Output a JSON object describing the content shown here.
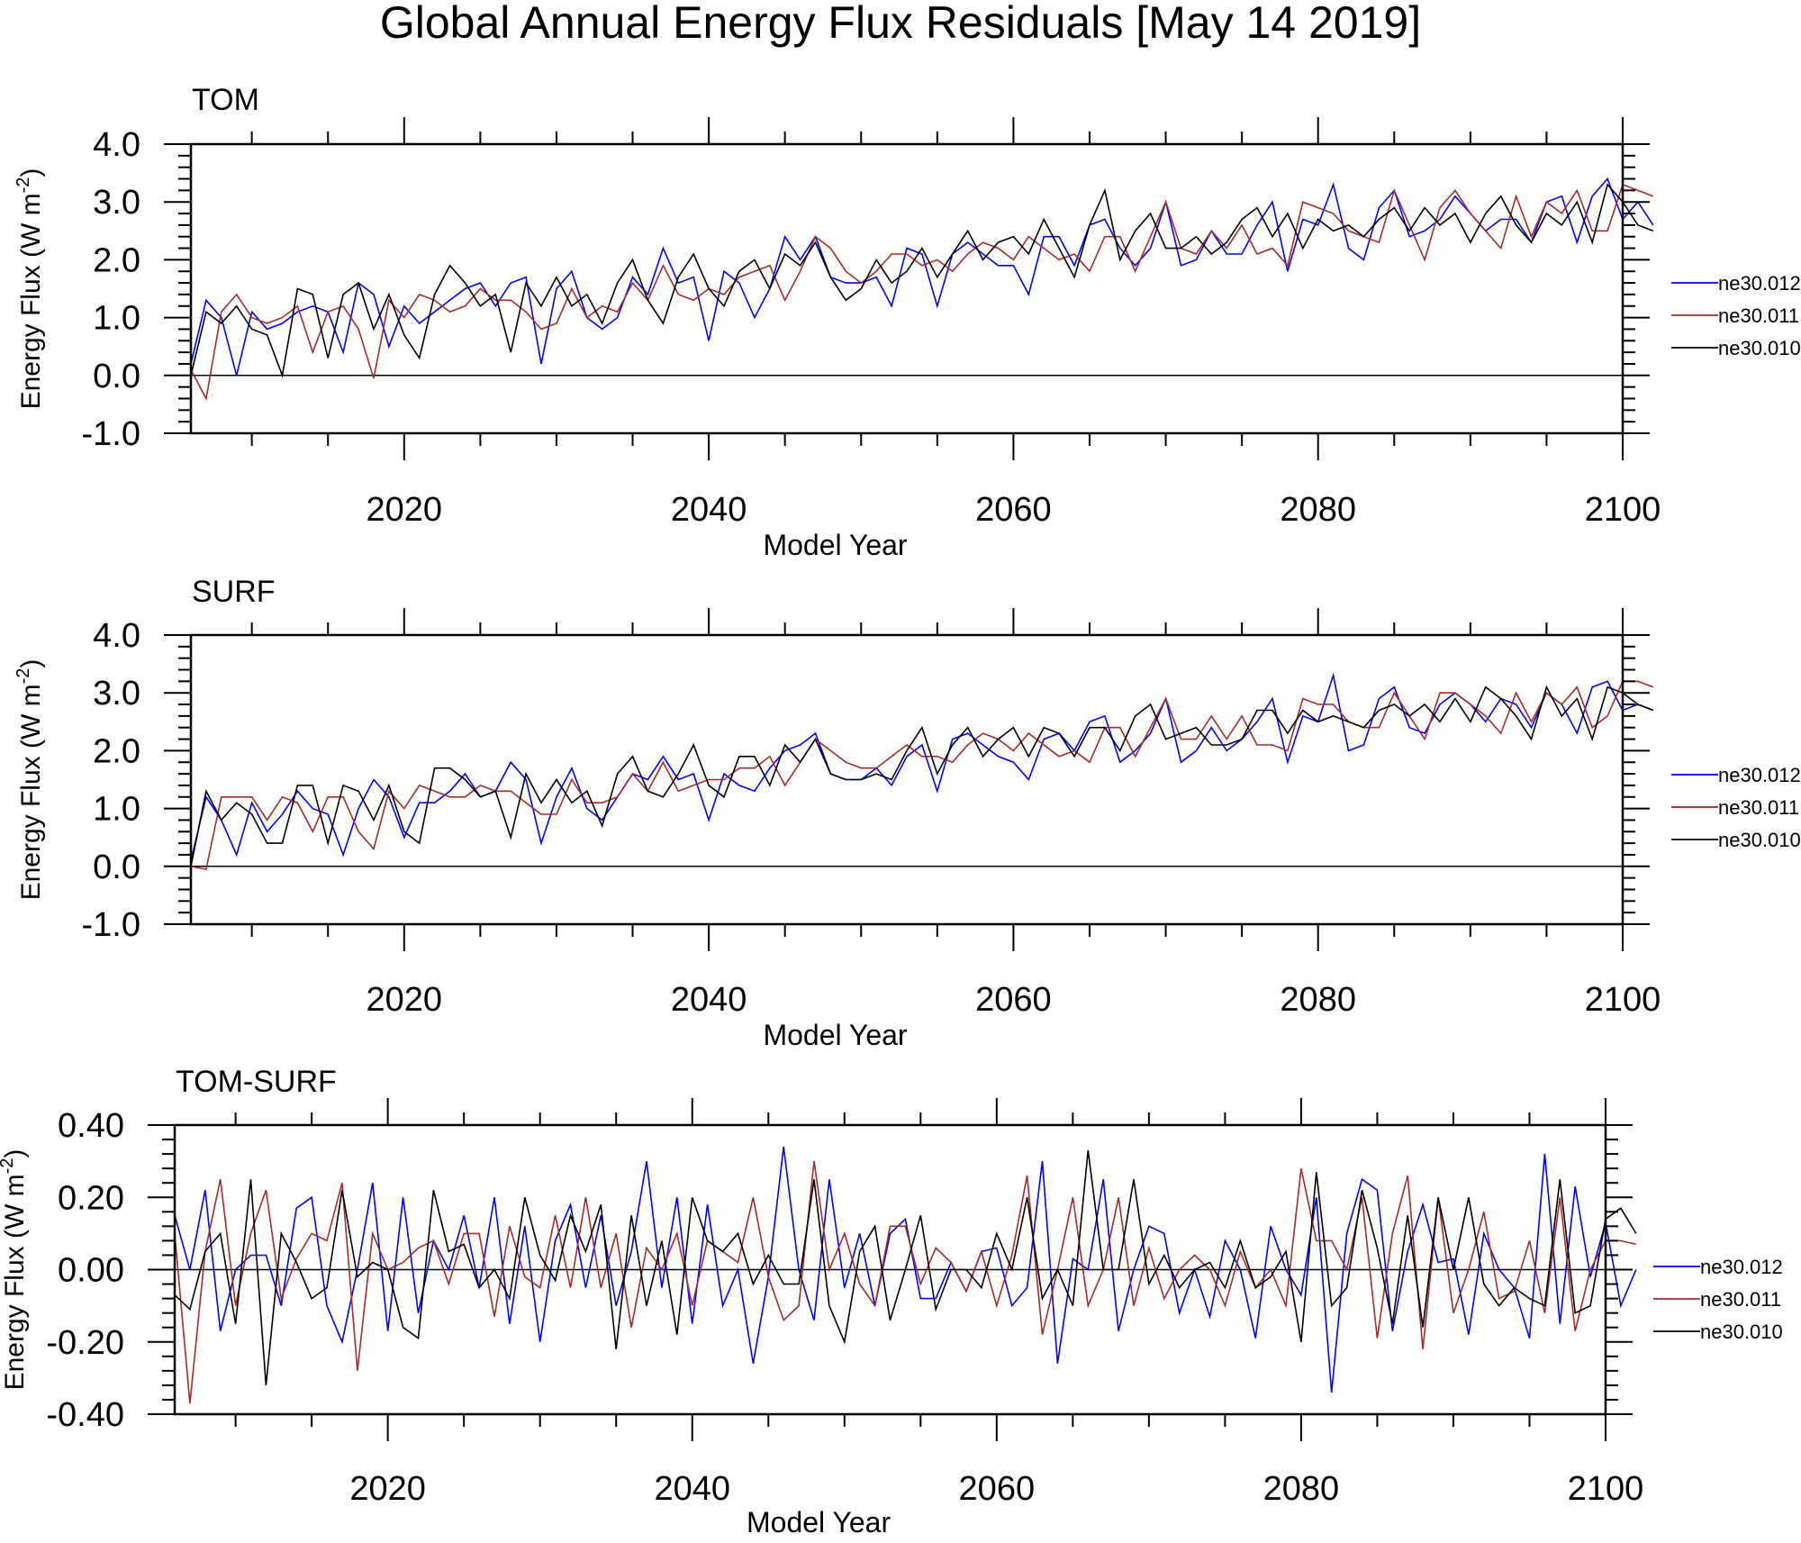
{
  "title": "Global Annual Energy Flux Residuals [May 14 2019]",
  "colors": {
    "ne30.012": "#0000ff",
    "ne30.011": "#a52a2a",
    "ne30.010": "#000000"
  },
  "chart_data": [
    {
      "panel": "TOM",
      "type": "line",
      "xlabel": "Model Year",
      "ylabel": "Energy Flux (W m",
      "ylabel_sup": "-2",
      "ylabel_close": ")",
      "xlim": [
        2006,
        2100
      ],
      "ylim": [
        -1.0,
        4.0
      ],
      "x_ticks": [
        2020,
        2040,
        2060,
        2080,
        2100
      ],
      "x_tick_labels": [
        "2020",
        "2040",
        "2060",
        "2080",
        "2100"
      ],
      "y_ticks": [
        -1.0,
        0.0,
        1.0,
        2.0,
        3.0,
        4.0
      ],
      "y_tick_labels": [
        "-1.0",
        "0.0",
        "1.0",
        "2.0",
        "3.0",
        "4.0"
      ],
      "legend": [
        "ne30.012",
        "ne30.011",
        "ne30.010"
      ],
      "legend_position": "right",
      "zero_line": true,
      "x_start": 2006,
      "series": [
        {
          "name": "ne30.012",
          "values": [
            0.2,
            1.3,
            1.0,
            0.0,
            1.1,
            0.8,
            0.9,
            1.1,
            1.2,
            1.1,
            0.4,
            1.6,
            1.4,
            0.5,
            1.2,
            0.9,
            1.1,
            1.3,
            1.5,
            1.6,
            1.2,
            1.6,
            1.7,
            0.2,
            1.5,
            1.8,
            1.0,
            0.8,
            1.0,
            1.7,
            1.4,
            2.2,
            1.6,
            1.7,
            0.6,
            1.8,
            1.6,
            1.0,
            1.5,
            2.4,
            2.0,
            2.4,
            1.7,
            1.6,
            1.6,
            1.7,
            1.2,
            2.2,
            2.1,
            1.2,
            2.1,
            2.3,
            2.1,
            1.9,
            1.9,
            1.4,
            2.4,
            2.4,
            1.9,
            2.6,
            2.7,
            2.2,
            1.9,
            2.2,
            3.0,
            1.9,
            2.0,
            2.5,
            2.1,
            2.1,
            2.6,
            3.0,
            1.8,
            2.7,
            2.6,
            3.3,
            2.2,
            2.0,
            2.9,
            3.2,
            2.4,
            2.5,
            2.7,
            3.1,
            2.8,
            2.5,
            2.7,
            2.7,
            2.3,
            3.0,
            3.1,
            2.3,
            3.1,
            3.4,
            2.7,
            3.0,
            2.6
          ]
        },
        {
          "name": "ne30.011",
          "values": [
            0.1,
            -0.4,
            1.1,
            1.4,
            1.0,
            0.9,
            1.0,
            1.2,
            0.4,
            1.1,
            1.2,
            0.8,
            -0.05,
            1.3,
            1.0,
            1.4,
            1.3,
            1.1,
            1.2,
            1.5,
            1.3,
            1.3,
            1.1,
            0.8,
            0.9,
            1.5,
            1.0,
            1.2,
            1.1,
            1.6,
            1.3,
            1.9,
            1.4,
            1.3,
            1.5,
            1.4,
            1.7,
            1.8,
            1.9,
            1.3,
            1.8,
            2.4,
            2.2,
            1.8,
            1.6,
            1.8,
            2.1,
            2.1,
            1.9,
            2.0,
            1.8,
            2.1,
            2.3,
            2.2,
            2.0,
            2.4,
            2.2,
            2.0,
            2.1,
            1.8,
            2.4,
            2.4,
            1.8,
            2.4,
            3.0,
            2.2,
            2.1,
            2.5,
            2.2,
            2.6,
            2.1,
            2.2,
            1.9,
            3.0,
            2.9,
            2.8,
            2.5,
            2.4,
            2.3,
            3.2,
            2.6,
            2.0,
            2.9,
            3.2,
            2.8,
            2.5,
            2.2,
            3.1,
            2.4,
            3.0,
            2.8,
            3.2,
            2.5,
            2.5,
            3.3,
            3.2,
            3.1
          ]
        },
        {
          "name": "ne30.010",
          "values": [
            0.0,
            1.1,
            0.9,
            1.2,
            0.8,
            0.7,
            0.0,
            1.5,
            1.4,
            0.3,
            1.4,
            1.6,
            0.8,
            1.4,
            0.7,
            0.3,
            1.4,
            1.9,
            1.6,
            1.2,
            1.4,
            0.4,
            1.6,
            1.2,
            1.7,
            1.2,
            1.4,
            0.9,
            1.6,
            2.0,
            1.3,
            0.9,
            1.7,
            2.1,
            1.5,
            1.2,
            1.8,
            2.0,
            1.5,
            2.1,
            1.9,
            2.3,
            1.7,
            1.3,
            1.5,
            2.0,
            1.6,
            1.8,
            2.2,
            1.7,
            2.1,
            2.5,
            2.0,
            2.3,
            2.4,
            2.1,
            2.7,
            2.2,
            1.7,
            2.6,
            3.2,
            2.0,
            2.5,
            2.8,
            2.2,
            2.2,
            2.4,
            2.1,
            2.3,
            2.7,
            2.9,
            2.4,
            2.8,
            2.2,
            2.7,
            2.5,
            2.6,
            2.4,
            2.7,
            2.9,
            2.5,
            2.9,
            2.6,
            2.8,
            2.3,
            2.8,
            3.1,
            2.6,
            2.3,
            2.8,
            2.6,
            3.0,
            2.3,
            3.3,
            3.0,
            2.6,
            2.5
          ]
        }
      ]
    },
    {
      "panel": "SURF",
      "type": "line",
      "xlabel": "Model Year",
      "ylabel": "Energy Flux (W m",
      "ylabel_sup": "-2",
      "ylabel_close": ")",
      "xlim": [
        2006,
        2100
      ],
      "ylim": [
        -1.0,
        4.0
      ],
      "x_ticks": [
        2020,
        2040,
        2060,
        2080,
        2100
      ],
      "x_tick_labels": [
        "2020",
        "2040",
        "2060",
        "2080",
        "2100"
      ],
      "y_ticks": [
        -1.0,
        0.0,
        1.0,
        2.0,
        3.0,
        4.0
      ],
      "y_tick_labels": [
        "-1.0",
        "0.0",
        "1.0",
        "2.0",
        "3.0",
        "4.0"
      ],
      "legend": [
        "ne30.012",
        "ne30.011",
        "ne30.010"
      ],
      "legend_position": "right",
      "zero_line": true,
      "x_start": 2006,
      "series": [
        {
          "name": "ne30.012",
          "values": [
            0.1,
            1.2,
            0.8,
            0.2,
            1.1,
            0.6,
            0.9,
            1.3,
            1.0,
            0.9,
            0.2,
            1.0,
            1.5,
            1.2,
            0.5,
            1.1,
            1.1,
            1.3,
            1.6,
            1.2,
            1.3,
            1.8,
            1.5,
            0.4,
            1.2,
            1.7,
            1.0,
            0.8,
            1.2,
            1.6,
            1.5,
            1.9,
            1.5,
            1.6,
            0.8,
            1.6,
            1.4,
            1.3,
            1.7,
            2.0,
            2.1,
            2.3,
            1.6,
            1.5,
            1.5,
            1.7,
            1.4,
            1.9,
            2.1,
            1.3,
            2.2,
            2.3,
            2.1,
            1.9,
            1.8,
            1.5,
            2.2,
            2.3,
            2.0,
            2.5,
            2.6,
            1.8,
            2.0,
            2.3,
            2.9,
            1.8,
            2.0,
            2.4,
            2.0,
            2.2,
            2.5,
            2.9,
            1.8,
            2.6,
            2.5,
            3.3,
            2.0,
            2.1,
            2.9,
            3.1,
            2.4,
            2.3,
            2.8,
            3.0,
            2.8,
            2.5,
            2.9,
            2.8,
            2.4,
            3.0,
            2.8,
            2.3,
            3.1,
            3.2,
            2.7,
            2.8,
            2.7
          ]
        },
        {
          "name": "ne30.011",
          "values": [
            0.0,
            -0.05,
            1.2,
            1.2,
            1.2,
            0.8,
            1.2,
            1.1,
            0.6,
            1.2,
            1.2,
            0.6,
            0.3,
            1.3,
            1.0,
            1.4,
            1.3,
            1.2,
            1.2,
            1.4,
            1.3,
            1.3,
            1.1,
            0.9,
            0.9,
            1.5,
            1.1,
            1.1,
            1.2,
            1.6,
            1.3,
            1.8,
            1.3,
            1.4,
            1.5,
            1.5,
            1.7,
            1.7,
            1.9,
            1.4,
            1.8,
            2.2,
            2.0,
            1.8,
            1.7,
            1.7,
            1.9,
            2.1,
            1.9,
            1.9,
            1.8,
            2.1,
            2.3,
            2.2,
            2.0,
            2.3,
            2.1,
            1.9,
            2.0,
            1.8,
            2.4,
            2.4,
            1.9,
            2.4,
            2.9,
            2.2,
            2.2,
            2.6,
            2.2,
            2.6,
            2.1,
            2.1,
            2.0,
            2.9,
            2.8,
            2.8,
            2.5,
            2.4,
            2.4,
            3.0,
            2.6,
            2.2,
            3.0,
            3.0,
            2.8,
            2.6,
            2.3,
            3.0,
            2.5,
            3.0,
            2.8,
            3.1,
            2.4,
            2.6,
            3.2,
            3.2,
            3.1
          ]
        },
        {
          "name": "ne30.010",
          "values": [
            0.0,
            1.3,
            0.8,
            1.1,
            0.9,
            0.4,
            0.4,
            1.4,
            1.4,
            0.4,
            1.4,
            1.3,
            0.8,
            1.4,
            0.6,
            0.4,
            1.7,
            1.7,
            1.5,
            1.2,
            1.3,
            0.5,
            1.6,
            1.1,
            1.5,
            1.1,
            1.3,
            0.7,
            1.6,
            1.9,
            1.3,
            1.2,
            1.6,
            2.1,
            1.4,
            1.2,
            1.9,
            1.9,
            1.4,
            2.1,
            1.8,
            2.2,
            1.6,
            1.5,
            1.5,
            1.6,
            1.5,
            2.0,
            2.4,
            1.6,
            2.1,
            2.4,
            1.9,
            2.2,
            2.4,
            1.9,
            2.4,
            2.3,
            1.9,
            2.4,
            2.4,
            2.0,
            2.6,
            2.8,
            2.2,
            2.3,
            2.4,
            2.1,
            2.1,
            2.2,
            2.7,
            2.7,
            2.3,
            2.7,
            2.5,
            2.6,
            2.5,
            2.4,
            2.7,
            2.8,
            2.6,
            2.8,
            2.5,
            2.9,
            2.5,
            3.1,
            2.9,
            2.6,
            2.2,
            3.1,
            2.6,
            2.9,
            2.2,
            3.1,
            3.0,
            2.8,
            2.7
          ]
        }
      ]
    },
    {
      "panel": "TOM-SURF",
      "type": "line",
      "xlabel": "Model Year",
      "ylabel": "Energy Flux (W m",
      "ylabel_sup": "-2",
      "ylabel_close": ")",
      "xlim": [
        2006,
        2100
      ],
      "ylim": [
        -0.4,
        0.4
      ],
      "x_ticks": [
        2020,
        2040,
        2060,
        2080,
        2100
      ],
      "x_tick_labels": [
        "2020",
        "2040",
        "2060",
        "2080",
        "2100"
      ],
      "y_ticks": [
        -0.4,
        -0.2,
        0.0,
        0.2,
        0.4
      ],
      "y_tick_labels": [
        "-0.40",
        "-0.20",
        "0.00",
        "0.20",
        "0.40"
      ],
      "legend": [
        "ne30.012",
        "ne30.011",
        "ne30.010"
      ],
      "legend_position": "right",
      "zero_line": true,
      "x_start": 2006,
      "series": [
        {
          "name": "ne30.012",
          "values": [
            0.15,
            0.0,
            0.22,
            -0.17,
            0.0,
            0.04,
            0.04,
            -0.1,
            0.17,
            0.2,
            -0.1,
            -0.2,
            0.0,
            0.24,
            -0.17,
            0.2,
            -0.12,
            0.08,
            0.0,
            0.15,
            -0.05,
            0.2,
            -0.15,
            0.12,
            -0.2,
            0.08,
            0.18,
            -0.05,
            0.15,
            -0.1,
            0.05,
            0.3,
            -0.05,
            0.2,
            -0.15,
            0.18,
            -0.1,
            0.0,
            -0.26,
            -0.02,
            0.34,
            0.0,
            -0.14,
            0.25,
            -0.05,
            0.1,
            -0.1,
            0.1,
            0.14,
            -0.08,
            -0.08,
            0.02,
            -0.06,
            0.05,
            0.06,
            -0.1,
            -0.05,
            0.3,
            -0.26,
            0.03,
            0.0,
            0.25,
            -0.17,
            0.0,
            0.12,
            0.1,
            -0.12,
            0.0,
            -0.13,
            0.08,
            0.0,
            -0.19,
            0.12,
            0.0,
            -0.07,
            0.2,
            -0.34,
            0.1,
            0.25,
            0.22,
            -0.17,
            0.05,
            0.18,
            0.02,
            0.03,
            -0.18,
            0.1,
            0.0,
            -0.05,
            -0.19,
            0.32,
            -0.15,
            0.23,
            -0.02,
            0.13,
            -0.1,
            0.0
          ]
        },
        {
          "name": "ne30.011",
          "values": [
            0.1,
            -0.37,
            0.05,
            0.25,
            -0.1,
            0.1,
            0.22,
            -0.08,
            0.03,
            0.1,
            0.08,
            0.24,
            -0.28,
            0.1,
            0.0,
            0.02,
            0.06,
            0.08,
            -0.04,
            0.1,
            0.1,
            -0.13,
            0.12,
            -0.02,
            -0.05,
            0.15,
            -0.05,
            0.2,
            -0.05,
            0.1,
            -0.16,
            0.06,
            0.0,
            0.1,
            -0.1,
            0.08,
            0.05,
            0.02,
            0.2,
            -0.02,
            -0.14,
            -0.1,
            0.3,
            0.0,
            0.1,
            -0.04,
            -0.1,
            0.12,
            0.12,
            -0.04,
            0.06,
            0.02,
            -0.06,
            0.05,
            -0.1,
            0.04,
            0.26,
            -0.18,
            0.0,
            0.2,
            -0.1,
            0.0,
            0.2,
            -0.1,
            0.06,
            -0.08,
            0.0,
            0.04,
            0.0,
            -0.1,
            0.05,
            -0.05,
            0.0,
            -0.1,
            0.28,
            0.08,
            0.08,
            0.0,
            0.2,
            -0.19,
            0.1,
            0.26,
            -0.22,
            0.2,
            -0.12,
            0.0,
            0.16,
            -0.08,
            -0.06,
            0.08,
            -0.12,
            0.2,
            -0.17,
            0.0,
            0.08,
            0.08,
            0.07
          ]
        },
        {
          "name": "ne30.010",
          "values": [
            -0.07,
            -0.11,
            0.05,
            0.1,
            -0.15,
            0.25,
            -0.32,
            0.1,
            0.02,
            -0.08,
            -0.05,
            0.22,
            -0.02,
            0.02,
            0.0,
            -0.16,
            -0.19,
            0.22,
            0.05,
            0.07,
            -0.05,
            0.0,
            -0.08,
            0.2,
            0.04,
            -0.03,
            0.15,
            0.05,
            0.18,
            -0.22,
            0.15,
            -0.1,
            0.08,
            -0.18,
            0.2,
            0.08,
            0.05,
            0.1,
            -0.04,
            0.04,
            -0.04,
            -0.04,
            0.25,
            -0.1,
            -0.2,
            0.05,
            0.12,
            -0.14,
            0.0,
            0.15,
            -0.11,
            0.0,
            0.0,
            -0.05,
            0.1,
            0.0,
            0.2,
            -0.08,
            0.0,
            -0.1,
            0.33,
            0.0,
            0.0,
            0.25,
            -0.04,
            0.04,
            -0.05,
            0.0,
            0.02,
            -0.05,
            0.08,
            -0.05,
            -0.02,
            0.05,
            -0.2,
            0.27,
            -0.1,
            -0.05,
            0.22,
            0.06,
            -0.15,
            0.15,
            -0.16,
            0.2,
            0.0,
            0.2,
            -0.04,
            -0.1,
            -0.05,
            -0.08,
            -0.1,
            0.25,
            -0.12,
            -0.1,
            0.14,
            0.17,
            0.1
          ]
        }
      ]
    }
  ]
}
